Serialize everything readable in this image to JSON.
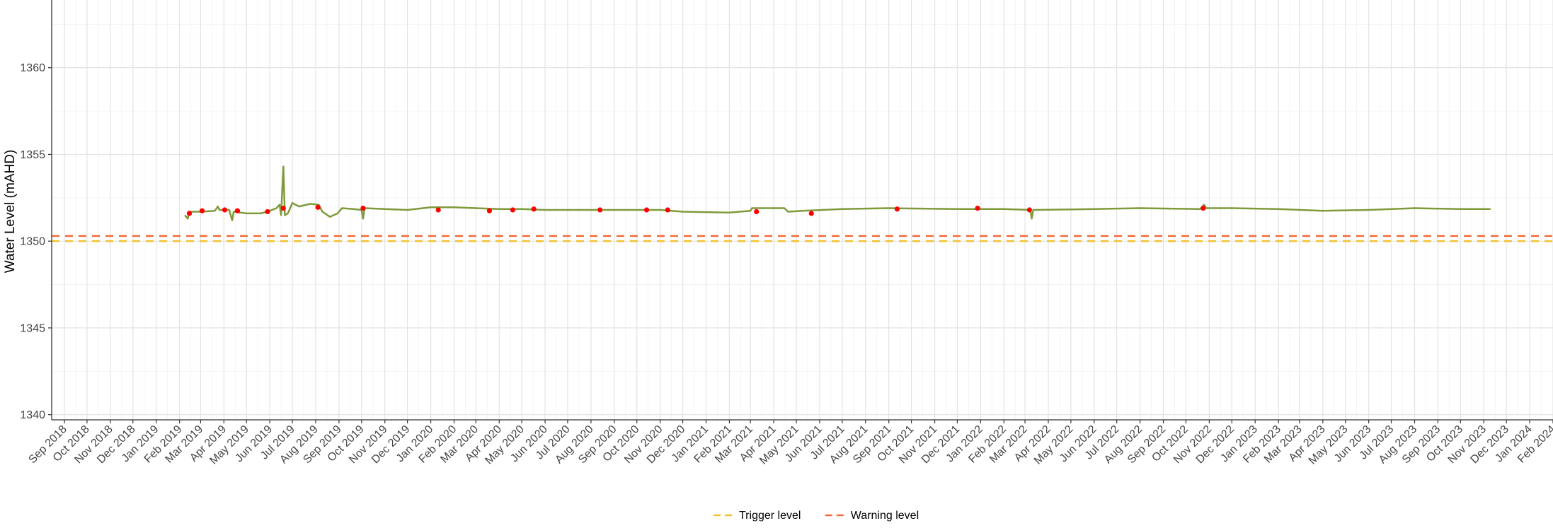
{
  "chart_data": {
    "type": "line",
    "title": "",
    "xlabel": "",
    "ylabel": "Water Level (mAHD)",
    "xlim": [
      "2018-08-15",
      "2024-02-01"
    ],
    "ylim": [
      1339.7,
      1363.9
    ],
    "y_ticks": [
      1340,
      1345,
      1350,
      1355,
      1360
    ],
    "x_ticks": [
      "Sep 2018",
      "Oct 2018",
      "Nov 2018",
      "Dec 2018",
      "Jan 2019",
      "Feb 2019",
      "Mar 2019",
      "Apr 2019",
      "May 2019",
      "Jun 2019",
      "Jul 2019",
      "Aug 2019",
      "Sep 2019",
      "Oct 2019",
      "Nov 2019",
      "Dec 2019",
      "Jan 2020",
      "Feb 2020",
      "Mar 2020",
      "Apr 2020",
      "May 2020",
      "Jun 2020",
      "Jul 2020",
      "Aug 2020",
      "Sep 2020",
      "Oct 2020",
      "Nov 2020",
      "Dec 2020",
      "Jan 2021",
      "Feb 2021",
      "Mar 2021",
      "Apr 2021",
      "May 2021",
      "Jun 2021",
      "Jul 2021",
      "Aug 2021",
      "Sep 2021",
      "Oct 2021",
      "Nov 2021",
      "Dec 2021",
      "Jan 2022",
      "Feb 2022",
      "Mar 2022",
      "Apr 2022",
      "May 2022",
      "Jun 2022",
      "Jul 2022",
      "Aug 2022",
      "Sep 2022",
      "Oct 2022",
      "Nov 2022",
      "Dec 2022",
      "Jan 2023",
      "Feb 2023",
      "Mar 2023",
      "Apr 2023",
      "May 2023",
      "Jun 2023",
      "Jul 2023",
      "Aug 2023",
      "Sep 2023",
      "Oct 2023",
      "Nov 2023",
      "Dec 2023",
      "Jan 2024",
      "Feb 2024"
    ],
    "grid": true,
    "legend": "bottom",
    "series": [
      {
        "color": "#7f9a3a",
        "points": [
          [
            "2019-02-08",
            1351.5
          ],
          [
            "2019-02-12",
            1351.3
          ],
          [
            "2019-02-14",
            1351.7
          ],
          [
            "2019-03-01",
            1351.7
          ],
          [
            "2019-03-20",
            1351.75
          ],
          [
            "2019-03-24",
            1352.0
          ],
          [
            "2019-03-26",
            1351.8
          ],
          [
            "2019-04-08",
            1351.8
          ],
          [
            "2019-04-12",
            1351.2
          ],
          [
            "2019-04-14",
            1351.7
          ],
          [
            "2019-05-01",
            1351.6
          ],
          [
            "2019-05-20",
            1351.6
          ],
          [
            "2019-06-01",
            1351.75
          ],
          [
            "2019-06-10",
            1351.9
          ],
          [
            "2019-06-14",
            1352.1
          ],
          [
            "2019-06-16",
            1351.5
          ],
          [
            "2019-06-19",
            1354.3
          ],
          [
            "2019-06-21",
            1351.5
          ],
          [
            "2019-06-25",
            1351.6
          ],
          [
            "2019-07-01",
            1352.2
          ],
          [
            "2019-07-10",
            1352.0
          ],
          [
            "2019-07-25",
            1352.15
          ],
          [
            "2019-08-05",
            1352.1
          ],
          [
            "2019-08-10",
            1351.7
          ],
          [
            "2019-08-20",
            1351.4
          ],
          [
            "2019-08-30",
            1351.6
          ],
          [
            "2019-09-05",
            1351.9
          ],
          [
            "2019-09-20",
            1351.85
          ],
          [
            "2019-10-01",
            1351.8
          ],
          [
            "2019-10-03",
            1351.3
          ],
          [
            "2019-10-05",
            1351.9
          ],
          [
            "2019-11-01",
            1351.85
          ],
          [
            "2019-12-01",
            1351.8
          ],
          [
            "2020-01-01",
            1351.95
          ],
          [
            "2020-02-01",
            1351.95
          ],
          [
            "2020-03-01",
            1351.9
          ],
          [
            "2020-04-01",
            1351.85
          ],
          [
            "2020-05-01",
            1351.85
          ],
          [
            "2020-06-01",
            1351.8
          ],
          [
            "2020-08-01",
            1351.8
          ],
          [
            "2020-10-01",
            1351.8
          ],
          [
            "2020-11-01",
            1351.8
          ],
          [
            "2020-12-01",
            1351.7
          ],
          [
            "2021-02-01",
            1351.65
          ],
          [
            "2021-03-01",
            1351.75
          ],
          [
            "2021-03-03",
            1351.9
          ],
          [
            "2021-04-15",
            1351.9
          ],
          [
            "2021-04-20",
            1351.7
          ],
          [
            "2021-05-10",
            1351.75
          ],
          [
            "2021-07-01",
            1351.85
          ],
          [
            "2021-09-01",
            1351.9
          ],
          [
            "2021-12-01",
            1351.85
          ],
          [
            "2022-02-01",
            1351.85
          ],
          [
            "2022-03-08",
            1351.8
          ],
          [
            "2022-03-10",
            1351.3
          ],
          [
            "2022-03-12",
            1351.8
          ],
          [
            "2022-06-01",
            1351.85
          ],
          [
            "2022-08-01",
            1351.9
          ],
          [
            "2022-10-20",
            1351.85
          ],
          [
            "2022-10-25",
            1352.1
          ],
          [
            "2022-10-28",
            1351.9
          ],
          [
            "2022-12-01",
            1351.9
          ],
          [
            "2023-02-01",
            1351.85
          ],
          [
            "2023-04-01",
            1351.75
          ],
          [
            "2023-06-01",
            1351.8
          ],
          [
            "2023-08-01",
            1351.9
          ],
          [
            "2023-10-01",
            1351.85
          ],
          [
            "2023-11-10",
            1351.85
          ]
        ]
      },
      {
        "type": "scatter",
        "color": "#ff0000",
        "points": [
          [
            "2019-02-14",
            1351.6
          ],
          [
            "2019-03-03",
            1351.75
          ],
          [
            "2019-04-02",
            1351.8
          ],
          [
            "2019-04-19",
            1351.75
          ],
          [
            "2019-05-29",
            1351.7
          ],
          [
            "2019-06-19",
            1351.9
          ],
          [
            "2019-08-04",
            1351.95
          ],
          [
            "2019-10-03",
            1351.9
          ],
          [
            "2020-01-11",
            1351.8
          ],
          [
            "2020-03-19",
            1351.75
          ],
          [
            "2020-04-19",
            1351.8
          ],
          [
            "2020-05-17",
            1351.85
          ],
          [
            "2020-08-13",
            1351.8
          ],
          [
            "2020-10-14",
            1351.8
          ],
          [
            "2020-11-11",
            1351.8
          ],
          [
            "2021-03-09",
            1351.7
          ],
          [
            "2021-05-21",
            1351.6
          ],
          [
            "2021-09-12",
            1351.85
          ],
          [
            "2021-12-28",
            1351.9
          ],
          [
            "2022-03-07",
            1351.8
          ],
          [
            "2022-10-24",
            1351.9
          ]
        ]
      }
    ],
    "thresholds": [
      {
        "name": "Trigger level",
        "value": 1350.0,
        "color": "#f2c12e"
      },
      {
        "name": "Warning level",
        "value": 1350.3,
        "color": "#f26b3a"
      }
    ]
  }
}
